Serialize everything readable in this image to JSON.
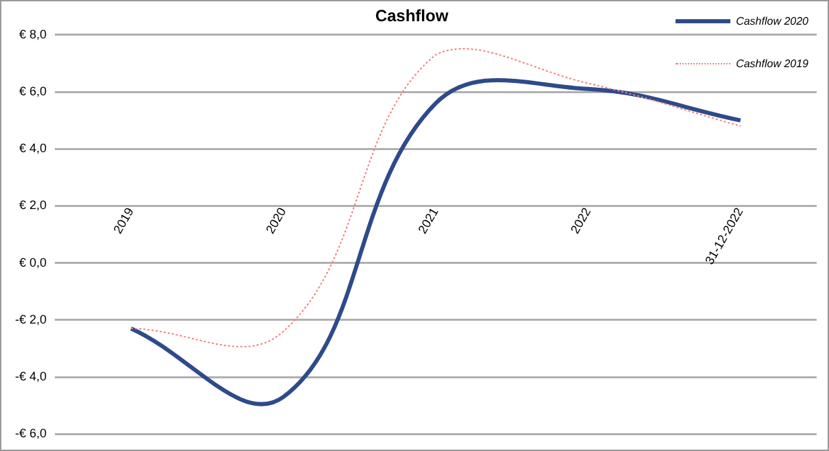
{
  "chart_data": {
    "type": "line",
    "title": "Cashflow",
    "categories": [
      "2019",
      "2020",
      "2021",
      "2022",
      "31-12-2022"
    ],
    "series": [
      {
        "name": "Cashflow 2020",
        "color": "#2e4a8a",
        "values": [
          -2.3,
          -4.7,
          5.6,
          6.1,
          5.0
        ],
        "line_style": "solid"
      },
      {
        "name": "Cashflow 2019",
        "color": "#f08080",
        "values": [
          -2.3,
          -2.4,
          7.3,
          6.3,
          4.8
        ],
        "line_style": "dotted"
      }
    ],
    "ylim": [
      -6,
      8
    ],
    "yticks": [
      {
        "value": -6,
        "label": "-€ 6,0"
      },
      {
        "value": -4,
        "label": "-€ 4,0"
      },
      {
        "value": -2,
        "label": "-€ 2,0"
      },
      {
        "value": 0,
        "label": "€ 0,0"
      },
      {
        "value": 2,
        "label": "€ 2,0"
      },
      {
        "value": 4,
        "label": "€ 4,0"
      },
      {
        "value": 6,
        "label": "€ 6,0"
      },
      {
        "value": 8,
        "label": "€ 8,0"
      }
    ],
    "grid": "y",
    "legend": "top right",
    "marker": "none"
  }
}
